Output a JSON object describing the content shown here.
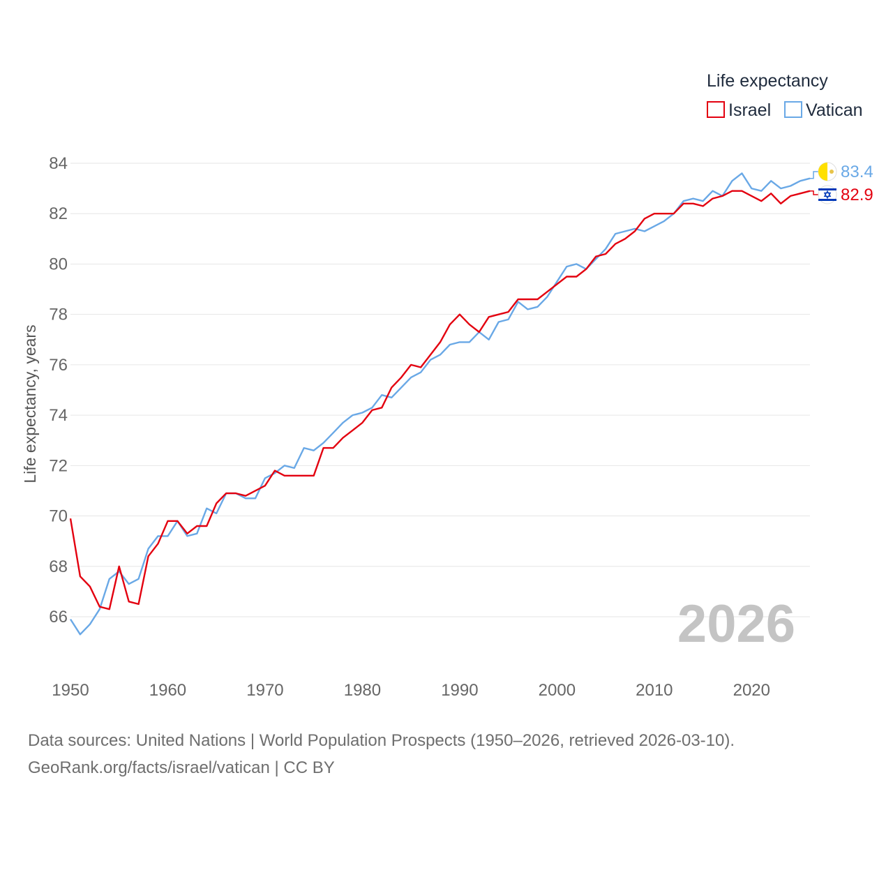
{
  "chart_data": {
    "type": "line",
    "legend_title": "Life expectancy",
    "legend_position": "top-right",
    "ylabel": "Life expectancy, years",
    "xlabel": "",
    "current_year_label": "2026",
    "xlim": [
      1950,
      2026
    ],
    "ylim": [
      64.7,
      84.3
    ],
    "x_ticks": [
      1950,
      1960,
      1970,
      1980,
      1990,
      2000,
      2010,
      2020
    ],
    "y_ticks": [
      66,
      68,
      70,
      72,
      74,
      76,
      78,
      80,
      82,
      84
    ],
    "grid": true,
    "x": [
      1950,
      1951,
      1952,
      1953,
      1954,
      1955,
      1956,
      1957,
      1958,
      1959,
      1960,
      1961,
      1962,
      1963,
      1964,
      1965,
      1966,
      1967,
      1968,
      1969,
      1970,
      1971,
      1972,
      1973,
      1974,
      1975,
      1976,
      1977,
      1978,
      1979,
      1980,
      1981,
      1982,
      1983,
      1984,
      1985,
      1986,
      1987,
      1988,
      1989,
      1990,
      1991,
      1992,
      1993,
      1994,
      1995,
      1996,
      1997,
      1998,
      1999,
      2000,
      2001,
      2002,
      2003,
      2004,
      2005,
      2006,
      2007,
      2008,
      2009,
      2010,
      2011,
      2012,
      2013,
      2014,
      2015,
      2016,
      2017,
      2018,
      2019,
      2020,
      2021,
      2022,
      2023,
      2024,
      2025,
      2026
    ],
    "series": [
      {
        "name": "Israel",
        "color": "#e3000f",
        "end_label": "82.9",
        "flag_icon": "israel-flag-icon",
        "values": [
          69.9,
          67.6,
          67.2,
          66.4,
          66.3,
          68.0,
          66.6,
          66.5,
          68.4,
          68.9,
          69.8,
          69.8,
          69.3,
          69.6,
          69.6,
          70.5,
          70.9,
          70.9,
          70.8,
          71.0,
          71.2,
          71.8,
          71.6,
          71.6,
          71.6,
          71.6,
          72.7,
          72.7,
          73.1,
          73.4,
          73.7,
          74.2,
          74.3,
          75.1,
          75.5,
          76.0,
          75.9,
          76.4,
          76.9,
          77.6,
          78.0,
          77.6,
          77.3,
          77.9,
          78.0,
          78.1,
          78.6,
          78.6,
          78.6,
          78.9,
          79.2,
          79.5,
          79.5,
          79.8,
          80.3,
          80.4,
          80.8,
          81.0,
          81.3,
          81.8,
          82.0,
          82.0,
          82.0,
          82.4,
          82.4,
          82.3,
          82.6,
          82.7,
          82.9,
          82.9,
          82.7,
          82.5,
          82.8,
          82.4,
          82.7,
          82.8,
          82.9
        ]
      },
      {
        "name": "Vatican",
        "color": "#69a8e6",
        "end_label": "83.4",
        "flag_icon": "vatican-flag-icon",
        "values": [
          65.9,
          65.3,
          65.7,
          66.3,
          67.5,
          67.8,
          67.3,
          67.5,
          68.7,
          69.2,
          69.2,
          69.8,
          69.2,
          69.3,
          70.3,
          70.1,
          70.9,
          70.9,
          70.7,
          70.7,
          71.5,
          71.7,
          72.0,
          71.9,
          72.7,
          72.6,
          72.9,
          73.3,
          73.7,
          74.0,
          74.1,
          74.3,
          74.8,
          74.7,
          75.1,
          75.5,
          75.7,
          76.2,
          76.4,
          76.8,
          76.9,
          76.9,
          77.3,
          77.0,
          77.7,
          77.8,
          78.5,
          78.2,
          78.3,
          78.7,
          79.3,
          79.9,
          80.0,
          79.8,
          80.2,
          80.6,
          81.2,
          81.3,
          81.4,
          81.3,
          81.5,
          81.7,
          82.0,
          82.5,
          82.6,
          82.5,
          82.9,
          82.7,
          83.3,
          83.6,
          83.0,
          82.9,
          83.3,
          83.0,
          83.1,
          83.3,
          83.4
        ]
      }
    ]
  },
  "source": {
    "line1": "Data sources: United Nations | World Population Prospects (1950–2026, retrieved 2026-03-10).",
    "line2": "GeoRank.org/facts/israel/vatican | CC BY"
  }
}
